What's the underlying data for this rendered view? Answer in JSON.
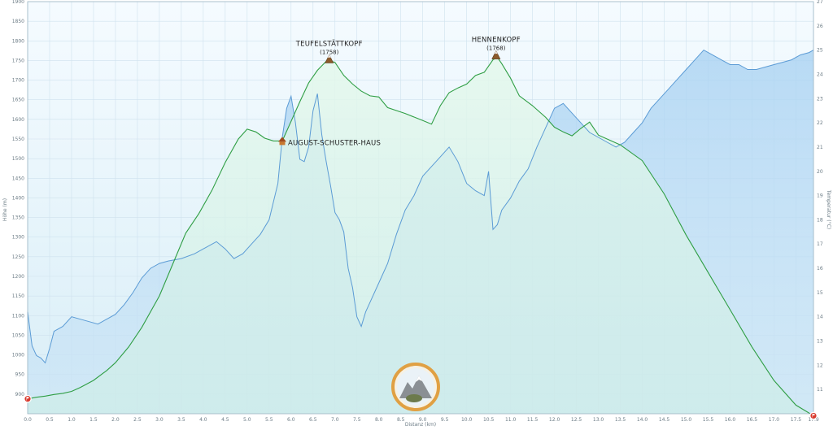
{
  "chart_data": {
    "type": "area",
    "xlabel": "Distanz (km)",
    "ylabel": "Höhe (m)",
    "y2label": "Temperatur (°C)",
    "xlim": [
      0.0,
      17.9
    ],
    "ylim": [
      850,
      1900
    ],
    "y2lim": [
      10,
      27
    ],
    "grid": true,
    "x_ticks": [
      "0.0",
      "0.5",
      "1.0",
      "1.5",
      "2.0",
      "2.5",
      "3.0",
      "3.5",
      "4.0",
      "4.5",
      "5.0",
      "5.5",
      "6.0",
      "6.5",
      "7.0",
      "7.5",
      "8.0",
      "8.5",
      "9.0",
      "9.5",
      "10.0",
      "10.5",
      "11.0",
      "11.5",
      "12.0",
      "12.5",
      "13.0",
      "13.5",
      "14.0",
      "14.5",
      "15.0",
      "15.5",
      "16.0",
      "16.5",
      "17.0",
      "17.5",
      "17.9"
    ],
    "y_ticks": [
      "900",
      "950",
      "1000",
      "1050",
      "1100",
      "1150",
      "1200",
      "1250",
      "1300",
      "1350",
      "1400",
      "1450",
      "1500",
      "1550",
      "1600",
      "1650",
      "1700",
      "1750",
      "1800",
      "1850",
      "1900"
    ],
    "y2_ticks": [
      "11",
      "12",
      "13",
      "14",
      "15",
      "16",
      "17",
      "18",
      "19",
      "20",
      "21",
      "22",
      "23",
      "24",
      "25",
      "26",
      "27"
    ],
    "series": [
      {
        "color": "#2f9e44",
        "axis": "left",
        "x": [
          0.0,
          0.2,
          0.4,
          0.6,
          0.8,
          1.0,
          1.2,
          1.5,
          1.8,
          2.0,
          2.3,
          2.6,
          3.0,
          3.3,
          3.6,
          3.9,
          4.2,
          4.5,
          4.8,
          5.0,
          5.2,
          5.4,
          5.6,
          5.8,
          6.0,
          6.2,
          6.4,
          6.6,
          6.8,
          6.9,
          7.0,
          7.2,
          7.4,
          7.6,
          7.8,
          8.0,
          8.2,
          8.6,
          9.0,
          9.2,
          9.4,
          9.6,
          9.8,
          10.0,
          10.2,
          10.4,
          10.6,
          10.7,
          10.8,
          11.0,
          11.2,
          11.5,
          11.8,
          12.0,
          12.2,
          12.4,
          12.6,
          12.8,
          13.0,
          13.5,
          14.0,
          14.5,
          15.0,
          15.5,
          16.0,
          16.5,
          17.0,
          17.5,
          17.9
        ],
        "y": [
          888,
          892,
          895,
          899,
          902,
          907,
          917,
          935,
          960,
          980,
          1020,
          1070,
          1150,
          1230,
          1310,
          1360,
          1420,
          1490,
          1550,
          1575,
          1568,
          1552,
          1545,
          1545,
          1595,
          1645,
          1693,
          1725,
          1748,
          1749,
          1745,
          1712,
          1690,
          1672,
          1660,
          1657,
          1630,
          1615,
          1597,
          1588,
          1635,
          1668,
          1680,
          1690,
          1712,
          1720,
          1752,
          1758,
          1742,
          1705,
          1660,
          1635,
          1605,
          1580,
          1568,
          1558,
          1577,
          1593,
          1560,
          1535,
          1495,
          1410,
          1305,
          1210,
          1115,
          1020,
          935,
          872,
          845
        ]
      },
      {
        "color": "#5b9bd5",
        "axis": "right",
        "x": [
          0.0,
          0.05,
          0.1,
          0.2,
          0.3,
          0.4,
          0.5,
          0.6,
          0.8,
          1.0,
          1.2,
          1.4,
          1.6,
          1.8,
          2.0,
          2.2,
          2.4,
          2.6,
          2.8,
          3.0,
          3.2,
          3.5,
          3.8,
          4.0,
          4.3,
          4.5,
          4.7,
          4.9,
          5.1,
          5.3,
          5.5,
          5.7,
          5.8,
          5.9,
          6.0,
          6.1,
          6.2,
          6.3,
          6.4,
          6.5,
          6.6,
          6.7,
          6.8,
          6.9,
          7.0,
          7.1,
          7.2,
          7.3,
          7.4,
          7.5,
          7.6,
          7.7,
          7.8,
          8.0,
          8.2,
          8.4,
          8.6,
          8.8,
          9.0,
          9.2,
          9.4,
          9.6,
          9.8,
          10.0,
          10.2,
          10.4,
          10.5,
          10.6,
          10.7,
          10.8,
          11.0,
          11.2,
          11.4,
          11.6,
          11.8,
          12.0,
          12.2,
          12.4,
          12.6,
          12.8,
          13.0,
          13.2,
          13.4,
          13.6,
          13.8,
          14.0,
          14.2,
          14.4,
          14.6,
          14.8,
          15.0,
          15.2,
          15.4,
          15.6,
          15.8,
          16.0,
          16.2,
          16.4,
          16.6,
          16.8,
          17.0,
          17.2,
          17.4,
          17.6,
          17.8,
          17.9
        ],
        "y": [
          14.2,
          13.5,
          12.8,
          12.4,
          12.3,
          12.1,
          12.7,
          13.4,
          13.6,
          14.0,
          13.9,
          13.8,
          13.7,
          13.9,
          14.1,
          14.5,
          15.0,
          15.6,
          16.0,
          16.2,
          16.3,
          16.4,
          16.6,
          16.8,
          17.1,
          16.8,
          16.4,
          16.6,
          17.0,
          17.4,
          18.0,
          19.5,
          21.4,
          22.6,
          23.1,
          22.0,
          20.5,
          20.4,
          21.0,
          22.5,
          23.2,
          21.5,
          20.4,
          19.4,
          18.3,
          18.0,
          17.5,
          16.0,
          15.2,
          14.0,
          13.6,
          14.2,
          14.6,
          15.4,
          16.2,
          17.4,
          18.4,
          19.0,
          19.8,
          20.2,
          20.6,
          21.0,
          20.4,
          19.5,
          19.2,
          19.0,
          20.0,
          17.6,
          17.8,
          18.4,
          18.9,
          19.6,
          20.1,
          21.0,
          21.8,
          22.6,
          22.8,
          22.4,
          22.0,
          21.6,
          21.4,
          21.2,
          21.0,
          21.2,
          21.6,
          22.0,
          22.6,
          23.0,
          23.4,
          23.8,
          24.2,
          24.6,
          25.0,
          24.8,
          24.6,
          24.4,
          24.4,
          24.2,
          24.2,
          24.3,
          24.4,
          24.5,
          24.6,
          24.8,
          24.9,
          25.0
        ]
      }
    ],
    "annotations": [
      {
        "label": "TEUFELSTÄTTKOPF",
        "sub": "(1758)",
        "x": 6.87,
        "y": 1748,
        "icon": "summit"
      },
      {
        "label": "HENNENKOPF",
        "sub": "(1768)",
        "x": 10.67,
        "y": 1758,
        "icon": "summit"
      },
      {
        "label": "AUGUST-SCHUSTER-HAUS",
        "sub": "",
        "x": 5.8,
        "y": 1545,
        "icon": "hut"
      }
    ],
    "markers": [
      {
        "type": "start-flag",
        "x": 0.0,
        "y": 888
      },
      {
        "type": "end-flag",
        "x": 17.9,
        "y": 845
      }
    ],
    "colors": {
      "background_top": "#f5fbff",
      "background_bottom": "#d9eef7",
      "elevation_fill": "#d7f5e3",
      "temperature_fill": "#bcdcf5",
      "grid": "#cfe2ee",
      "marker": "#d83a2e"
    }
  }
}
